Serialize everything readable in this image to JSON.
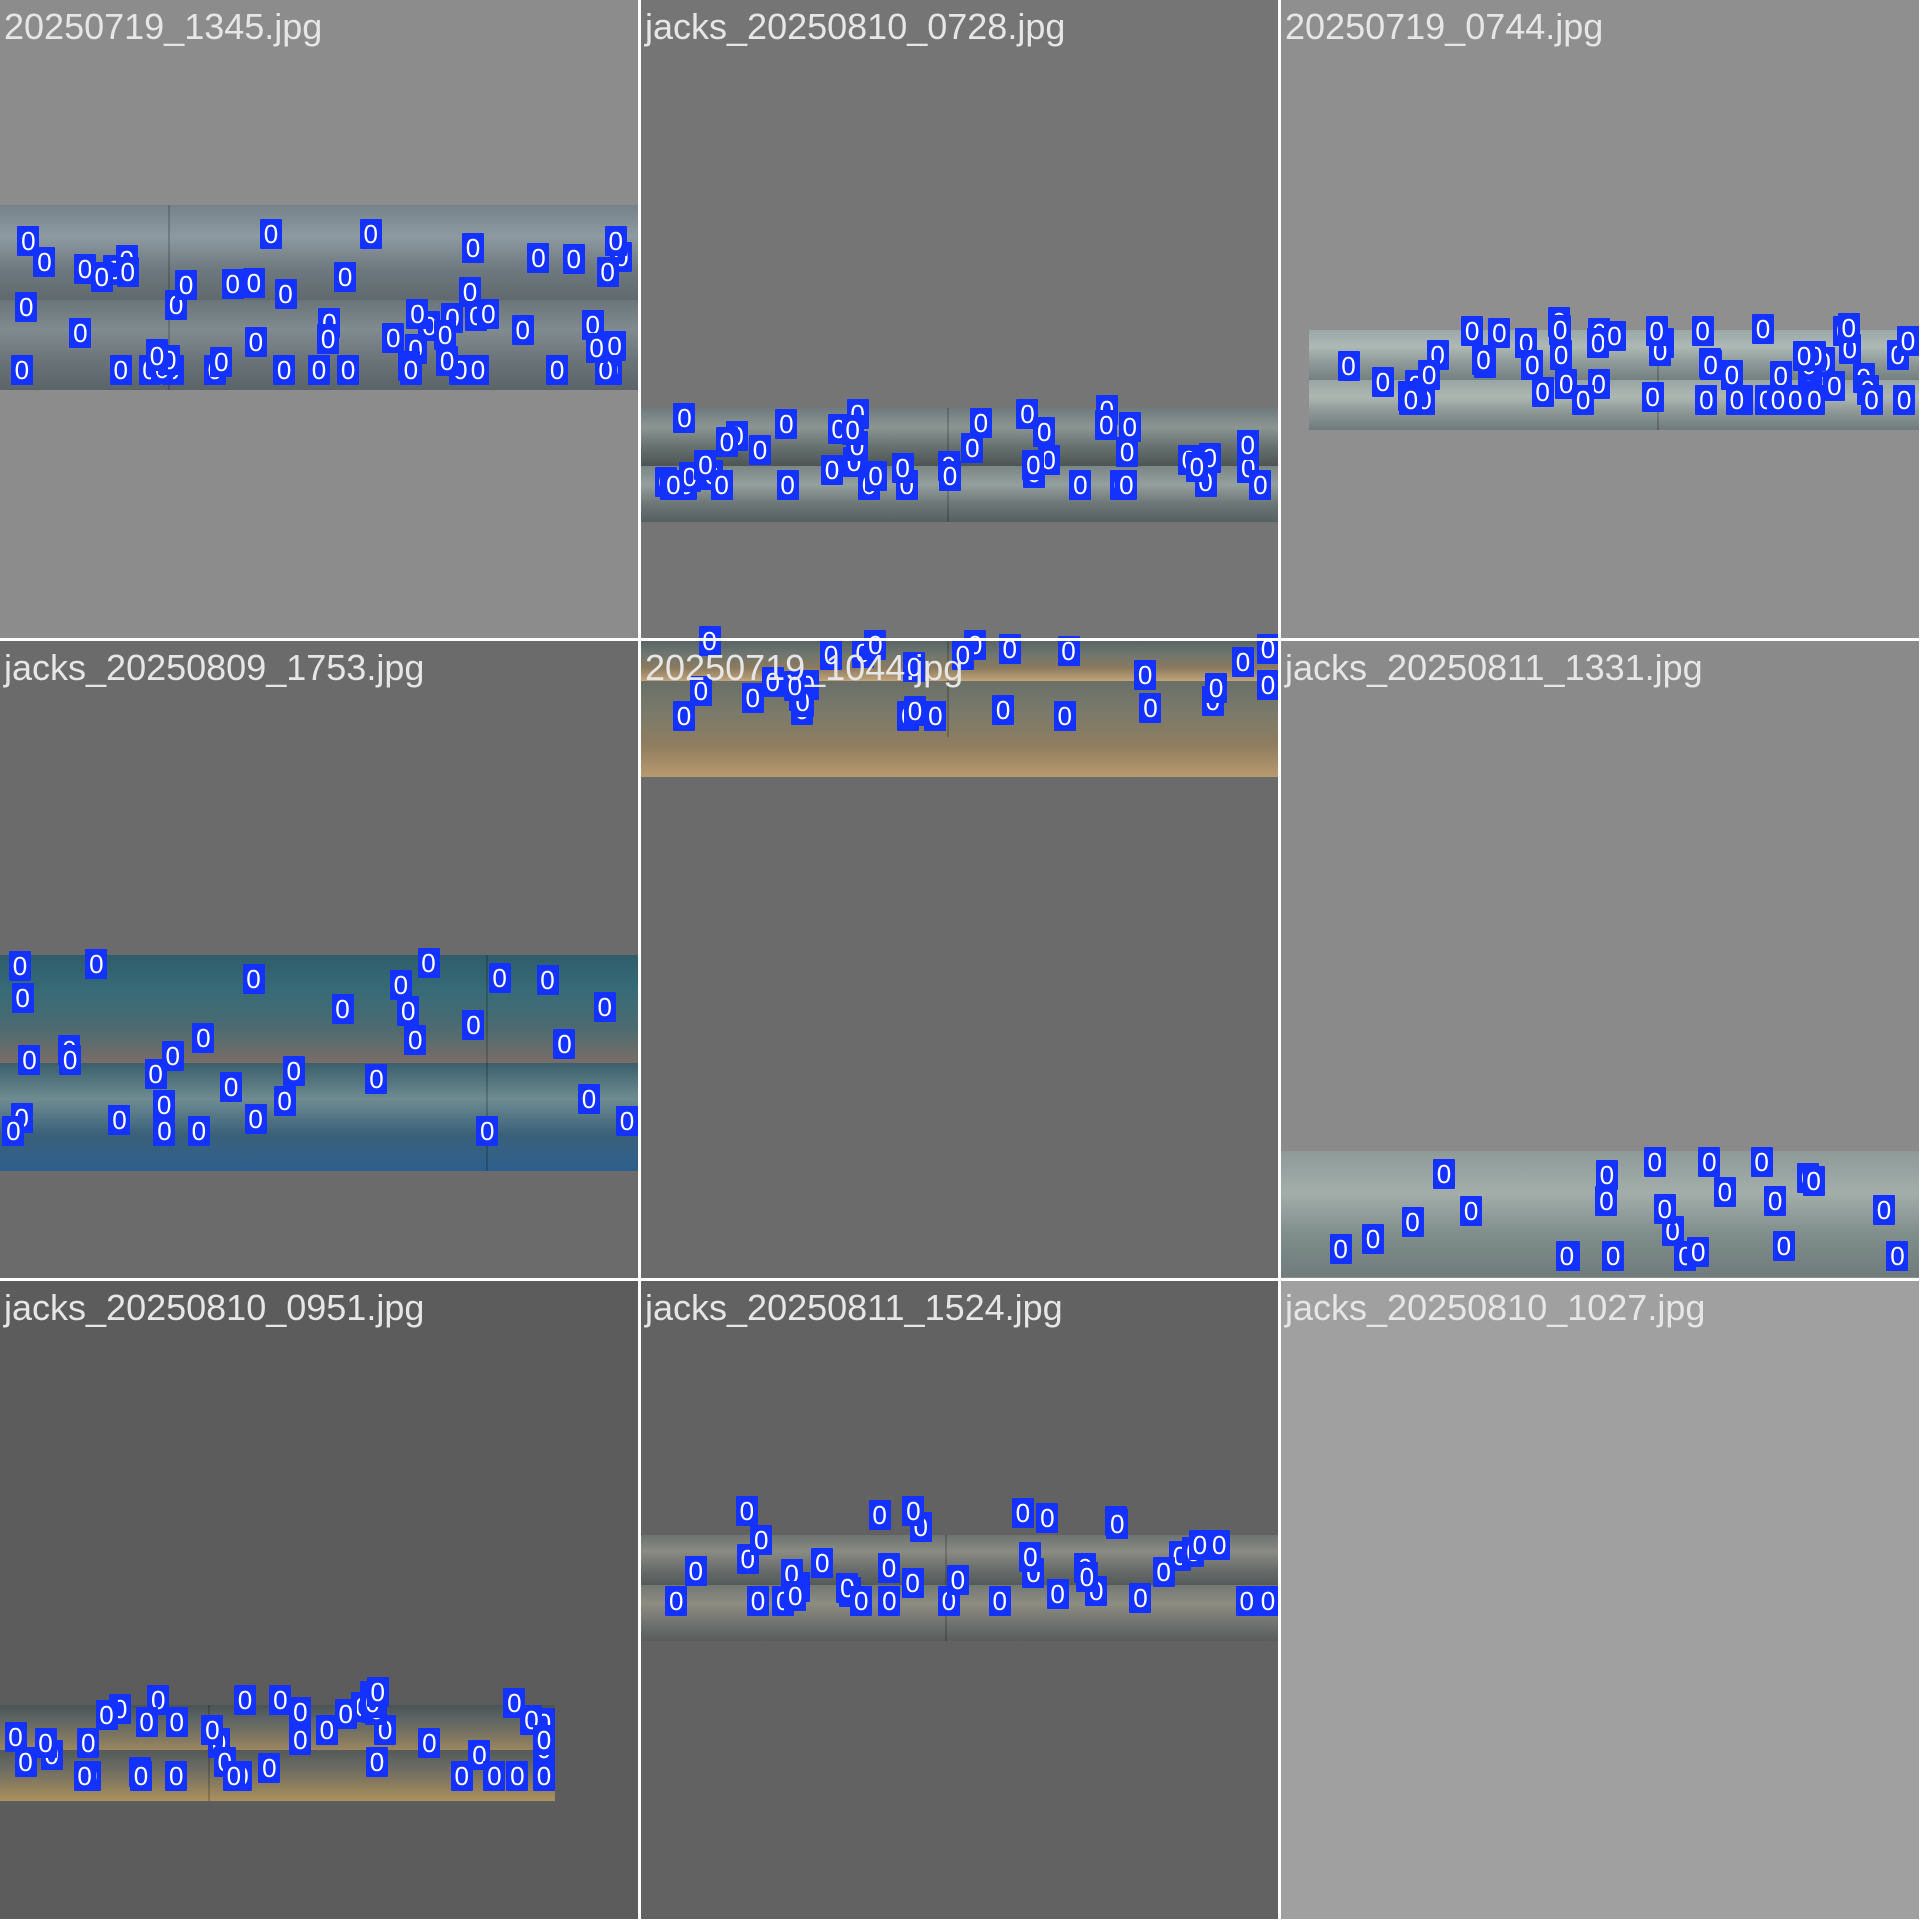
{
  "mosaic": {
    "box_class_label": "0",
    "box_color": "#1432ff",
    "tiles": [
      {
        "filename": "20250719_1345.jpg",
        "background": "#8c8c8c",
        "strips": [
          {
            "colors": [
              "#76828a",
              "#8d9aa1",
              "#6f7a80",
              "#5f696e"
            ]
          },
          {
            "colors": [
              "#6a757a",
              "#808b90",
              "#6b7479",
              "#5b6468"
            ]
          }
        ],
        "box_count": 60
      },
      {
        "filename": "jacks_20250810_0728.jpg",
        "background": "#757575",
        "strips": [
          {
            "colors": [
              "#6f7a7d",
              "#8b9591",
              "#677171",
              "#4d5553"
            ]
          },
          {
            "colors": [
              "#7a8585",
              "#94a09d",
              "#6e7777",
              "#566060"
            ]
          }
        ],
        "box_count": 48
      },
      {
        "filename": "20250719_0744.jpg",
        "background": "#8f8f8f",
        "strips": [
          {
            "colors": [
              "#9aa7a6",
              "#aeb9b5",
              "#8d9998",
              "#738080"
            ]
          },
          {
            "colors": [
              "#99a5a3",
              "#adb7b2",
              "#8a9594",
              "#6f7b7b"
            ]
          }
        ],
        "box_count": 58
      },
      {
        "filename": "jacks_20250809_1753.jpg",
        "background": "#6b6b6b",
        "strips": [
          {
            "colors": [
              "#2f5d6b",
              "#376b78",
              "#4b6b70",
              "#7a6d68"
            ]
          },
          {
            "colors": [
              "#3a5f6c",
              "#6e8c91",
              "#3a607a",
              "#2d5f8d"
            ]
          }
        ],
        "box_count": 34
      },
      {
        "filename": "20250719_1044.jpg",
        "background": "#6b6b6b",
        "strips": [
          {
            "colors": [
              "#5a6464",
              "#6e766f",
              "#8b7a5e",
              "#c2a57a"
            ]
          },
          {
            "colors": [
              "#6a6f68",
              "#7b7a6a",
              "#8f7d5f",
              "#b89a70"
            ]
          }
        ],
        "box_count": 30
      },
      {
        "filename": "jacks_20250811_1331.jpg",
        "background": "#8a8a8a",
        "strips": [
          {
            "colors": [
              "#8d9a98",
              "#a3aeaa",
              "#7f8d8b",
              "#6f7c7b"
            ]
          }
        ],
        "box_count": 24
      },
      {
        "filename": "jacks_20250810_0951.jpg",
        "background": "#5c5c5c",
        "strips": [
          {
            "colors": [
              "#4a5356",
              "#5f6664",
              "#7a7560",
              "#9c8660"
            ]
          },
          {
            "colors": [
              "#54595a",
              "#6a6a62",
              "#8a7c5e",
              "#ab915f"
            ]
          }
        ],
        "box_count": 46
      },
      {
        "filename": "jacks_20250811_1524.jpg",
        "background": "#626262",
        "strips": [
          {
            "colors": [
              "#6d7371",
              "#8a8b83",
              "#6b6f6d",
              "#545a5a"
            ]
          },
          {
            "colors": [
              "#737874",
              "#8e8c80",
              "#717471",
              "#575d5c"
            ]
          }
        ],
        "box_count": 42
      },
      {
        "filename": "jacks_20250810_1027.jpg",
        "background": "#a0a0a0",
        "strips": [],
        "box_count": 0
      }
    ]
  }
}
